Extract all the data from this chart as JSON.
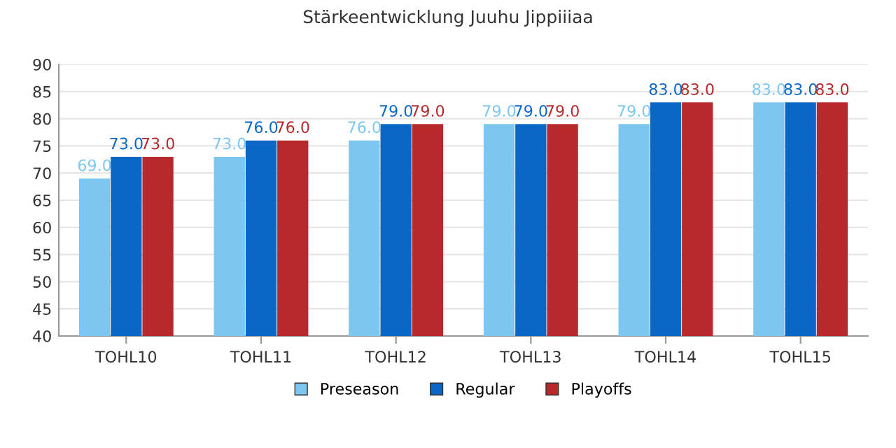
{
  "chart_data": {
    "type": "bar",
    "title": "Stärkeentwicklung Juuhu Jippiiiaa",
    "categories": [
      "TOHL10",
      "TOHL11",
      "TOHL12",
      "TOHL13",
      "TOHL14",
      "TOHL15"
    ],
    "series": [
      {
        "name": "Preseason",
        "color": "#7cc6ef",
        "values": [
          69,
          73,
          76,
          79,
          79,
          83
        ],
        "value_labels": [
          "69.0",
          "73.0",
          "76.0",
          "79.0",
          "79.0",
          "83.0"
        ]
      },
      {
        "name": "Regular",
        "color": "#0a67c5",
        "values": [
          73,
          76,
          79,
          79,
          83,
          83
        ],
        "value_labels": [
          "73.0",
          "76.0",
          "79.0",
          "79.0",
          "83.0",
          "83.0"
        ]
      },
      {
        "name": "Playoffs",
        "color": "#b8292b",
        "values": [
          73,
          76,
          79,
          79,
          83,
          83
        ],
        "value_labels": [
          "73.0",
          "76.0",
          "79.0",
          "79.0",
          "83.0",
          "83.0"
        ]
      }
    ],
    "ylim": [
      40,
      90
    ],
    "yticks": [
      40,
      45,
      50,
      55,
      60,
      65,
      70,
      75,
      80,
      85,
      90
    ],
    "grid": "y",
    "legend": "bottom"
  }
}
